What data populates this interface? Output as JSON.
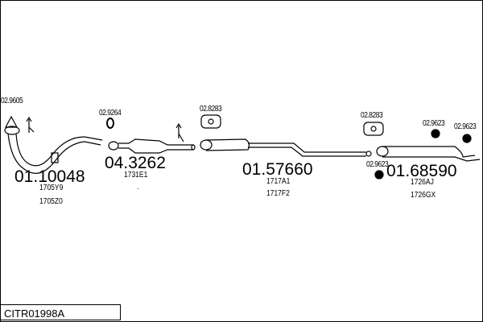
{
  "diagram_code": "CITR01998A",
  "parts": [
    {
      "number": "01.10048",
      "refs": [
        "1705Y9",
        "1705Z0"
      ]
    },
    {
      "number": "04.3262",
      "refs": [
        "1731E1",
        "."
      ]
    },
    {
      "number": "01.57660",
      "refs": [
        "1717A1",
        "1717F2"
      ]
    },
    {
      "number": "01.68590",
      "refs": [
        "1726AJ",
        "1726GX"
      ]
    }
  ],
  "accessories": [
    "02.9605",
    "02.9264",
    "02.8283",
    "02.8283",
    "02.9623",
    "02.9623",
    "02.9623"
  ]
}
